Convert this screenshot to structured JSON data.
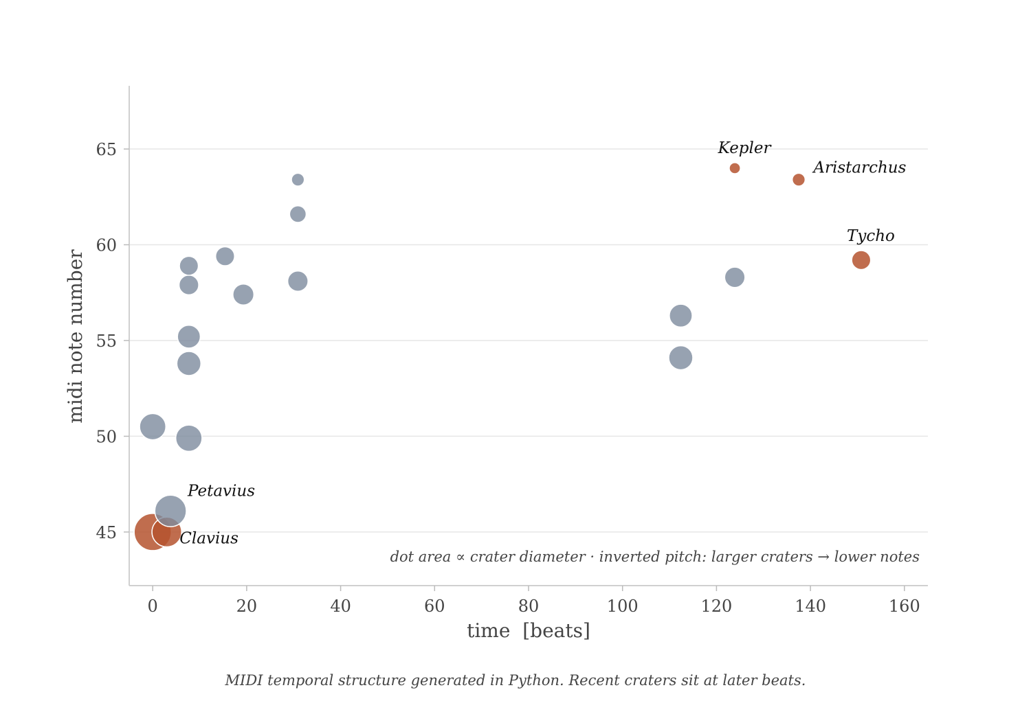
{
  "chart_data": {
    "type": "scatter",
    "title": "",
    "xlabel": "time  [beats]",
    "ylabel": "midi note number",
    "xlim": [
      -5,
      165
    ],
    "ylim": [
      42.2,
      68.3
    ],
    "xticks": [
      0,
      20,
      40,
      60,
      80,
      100,
      120,
      140,
      160
    ],
    "yticks": [
      45,
      50,
      55,
      60,
      65
    ],
    "grid": "horizontal",
    "size_encoding": "dot area proportional to crater diameter",
    "colors": {
      "normal": "#7d8b9e",
      "highlight": "#b5532f"
    },
    "points": [
      {
        "x": 0,
        "y": 45.0,
        "size": 1.0,
        "highlight": true,
        "label": ""
      },
      {
        "x": 3,
        "y": 45.0,
        "size": 0.64,
        "highlight": true,
        "label": "Clavius"
      },
      {
        "x": 3.8,
        "y": 46.1,
        "size": 0.72,
        "highlight": false,
        "label": "Petavius"
      },
      {
        "x": 0,
        "y": 50.5,
        "size": 0.5,
        "highlight": false,
        "label": ""
      },
      {
        "x": 7.7,
        "y": 49.9,
        "size": 0.5,
        "highlight": false,
        "label": ""
      },
      {
        "x": 7.7,
        "y": 53.8,
        "size": 0.42,
        "highlight": false,
        "label": ""
      },
      {
        "x": 7.7,
        "y": 55.2,
        "size": 0.38,
        "highlight": false,
        "label": ""
      },
      {
        "x": 7.7,
        "y": 57.9,
        "size": 0.28,
        "highlight": false,
        "label": ""
      },
      {
        "x": 7.7,
        "y": 58.9,
        "size": 0.26,
        "highlight": false,
        "label": ""
      },
      {
        "x": 15.4,
        "y": 59.4,
        "size": 0.26,
        "highlight": false,
        "label": ""
      },
      {
        "x": 19.3,
        "y": 57.4,
        "size": 0.32,
        "highlight": false,
        "label": ""
      },
      {
        "x": 30.9,
        "y": 58.1,
        "size": 0.3,
        "highlight": false,
        "label": ""
      },
      {
        "x": 30.9,
        "y": 61.6,
        "size": 0.2,
        "highlight": false,
        "label": ""
      },
      {
        "x": 30.9,
        "y": 63.4,
        "size": 0.12,
        "highlight": false,
        "label": ""
      },
      {
        "x": 112.4,
        "y": 54.1,
        "size": 0.42,
        "highlight": false,
        "label": ""
      },
      {
        "x": 112.4,
        "y": 56.3,
        "size": 0.38,
        "highlight": false,
        "label": ""
      },
      {
        "x": 123.9,
        "y": 58.3,
        "size": 0.3,
        "highlight": false,
        "label": ""
      },
      {
        "x": 123.9,
        "y": 64.0,
        "size": 0.09,
        "highlight": true,
        "label": "Kepler"
      },
      {
        "x": 137.5,
        "y": 63.4,
        "size": 0.12,
        "highlight": true,
        "label": "Aristarchus"
      },
      {
        "x": 150.8,
        "y": 59.2,
        "size": 0.26,
        "highlight": true,
        "label": "Tycho"
      }
    ],
    "annotations": [
      "dot area ∝ crater diameter   ·   inverted pitch: larger craters → lower notes"
    ]
  },
  "caption": "MIDI temporal structure generated in Python. Recent craters sit at later beats."
}
